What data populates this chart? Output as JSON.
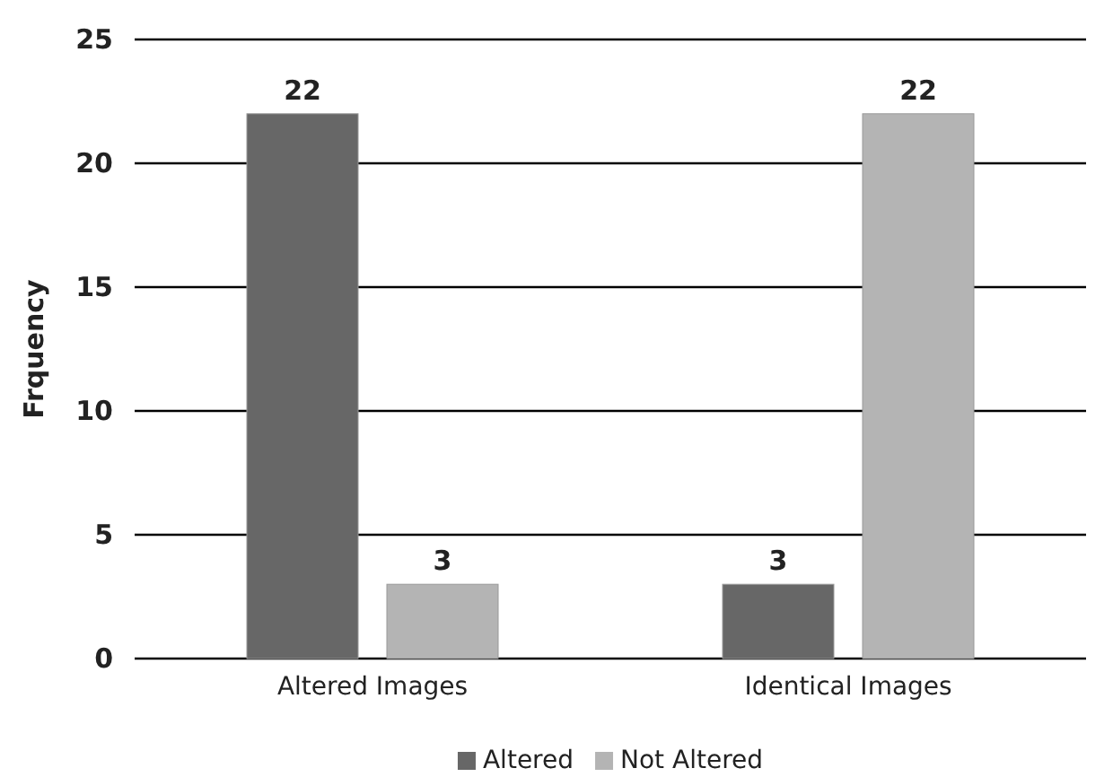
{
  "chart_data": {
    "type": "bar",
    "ylabel": "Frquency",
    "categories": [
      "Altered Images",
      "Identical Images"
    ],
    "series": [
      {
        "name": "Altered",
        "color": "#676767",
        "values": [
          22,
          3
        ]
      },
      {
        "name": "Not Altered",
        "color": "#b4b4b4",
        "values": [
          3,
          22
        ]
      }
    ],
    "ylim": [
      0,
      25
    ],
    "yticks": [
      0,
      5,
      10,
      15,
      20,
      25
    ],
    "grid": "y",
    "legend": "bottom",
    "data_labels": true
  }
}
